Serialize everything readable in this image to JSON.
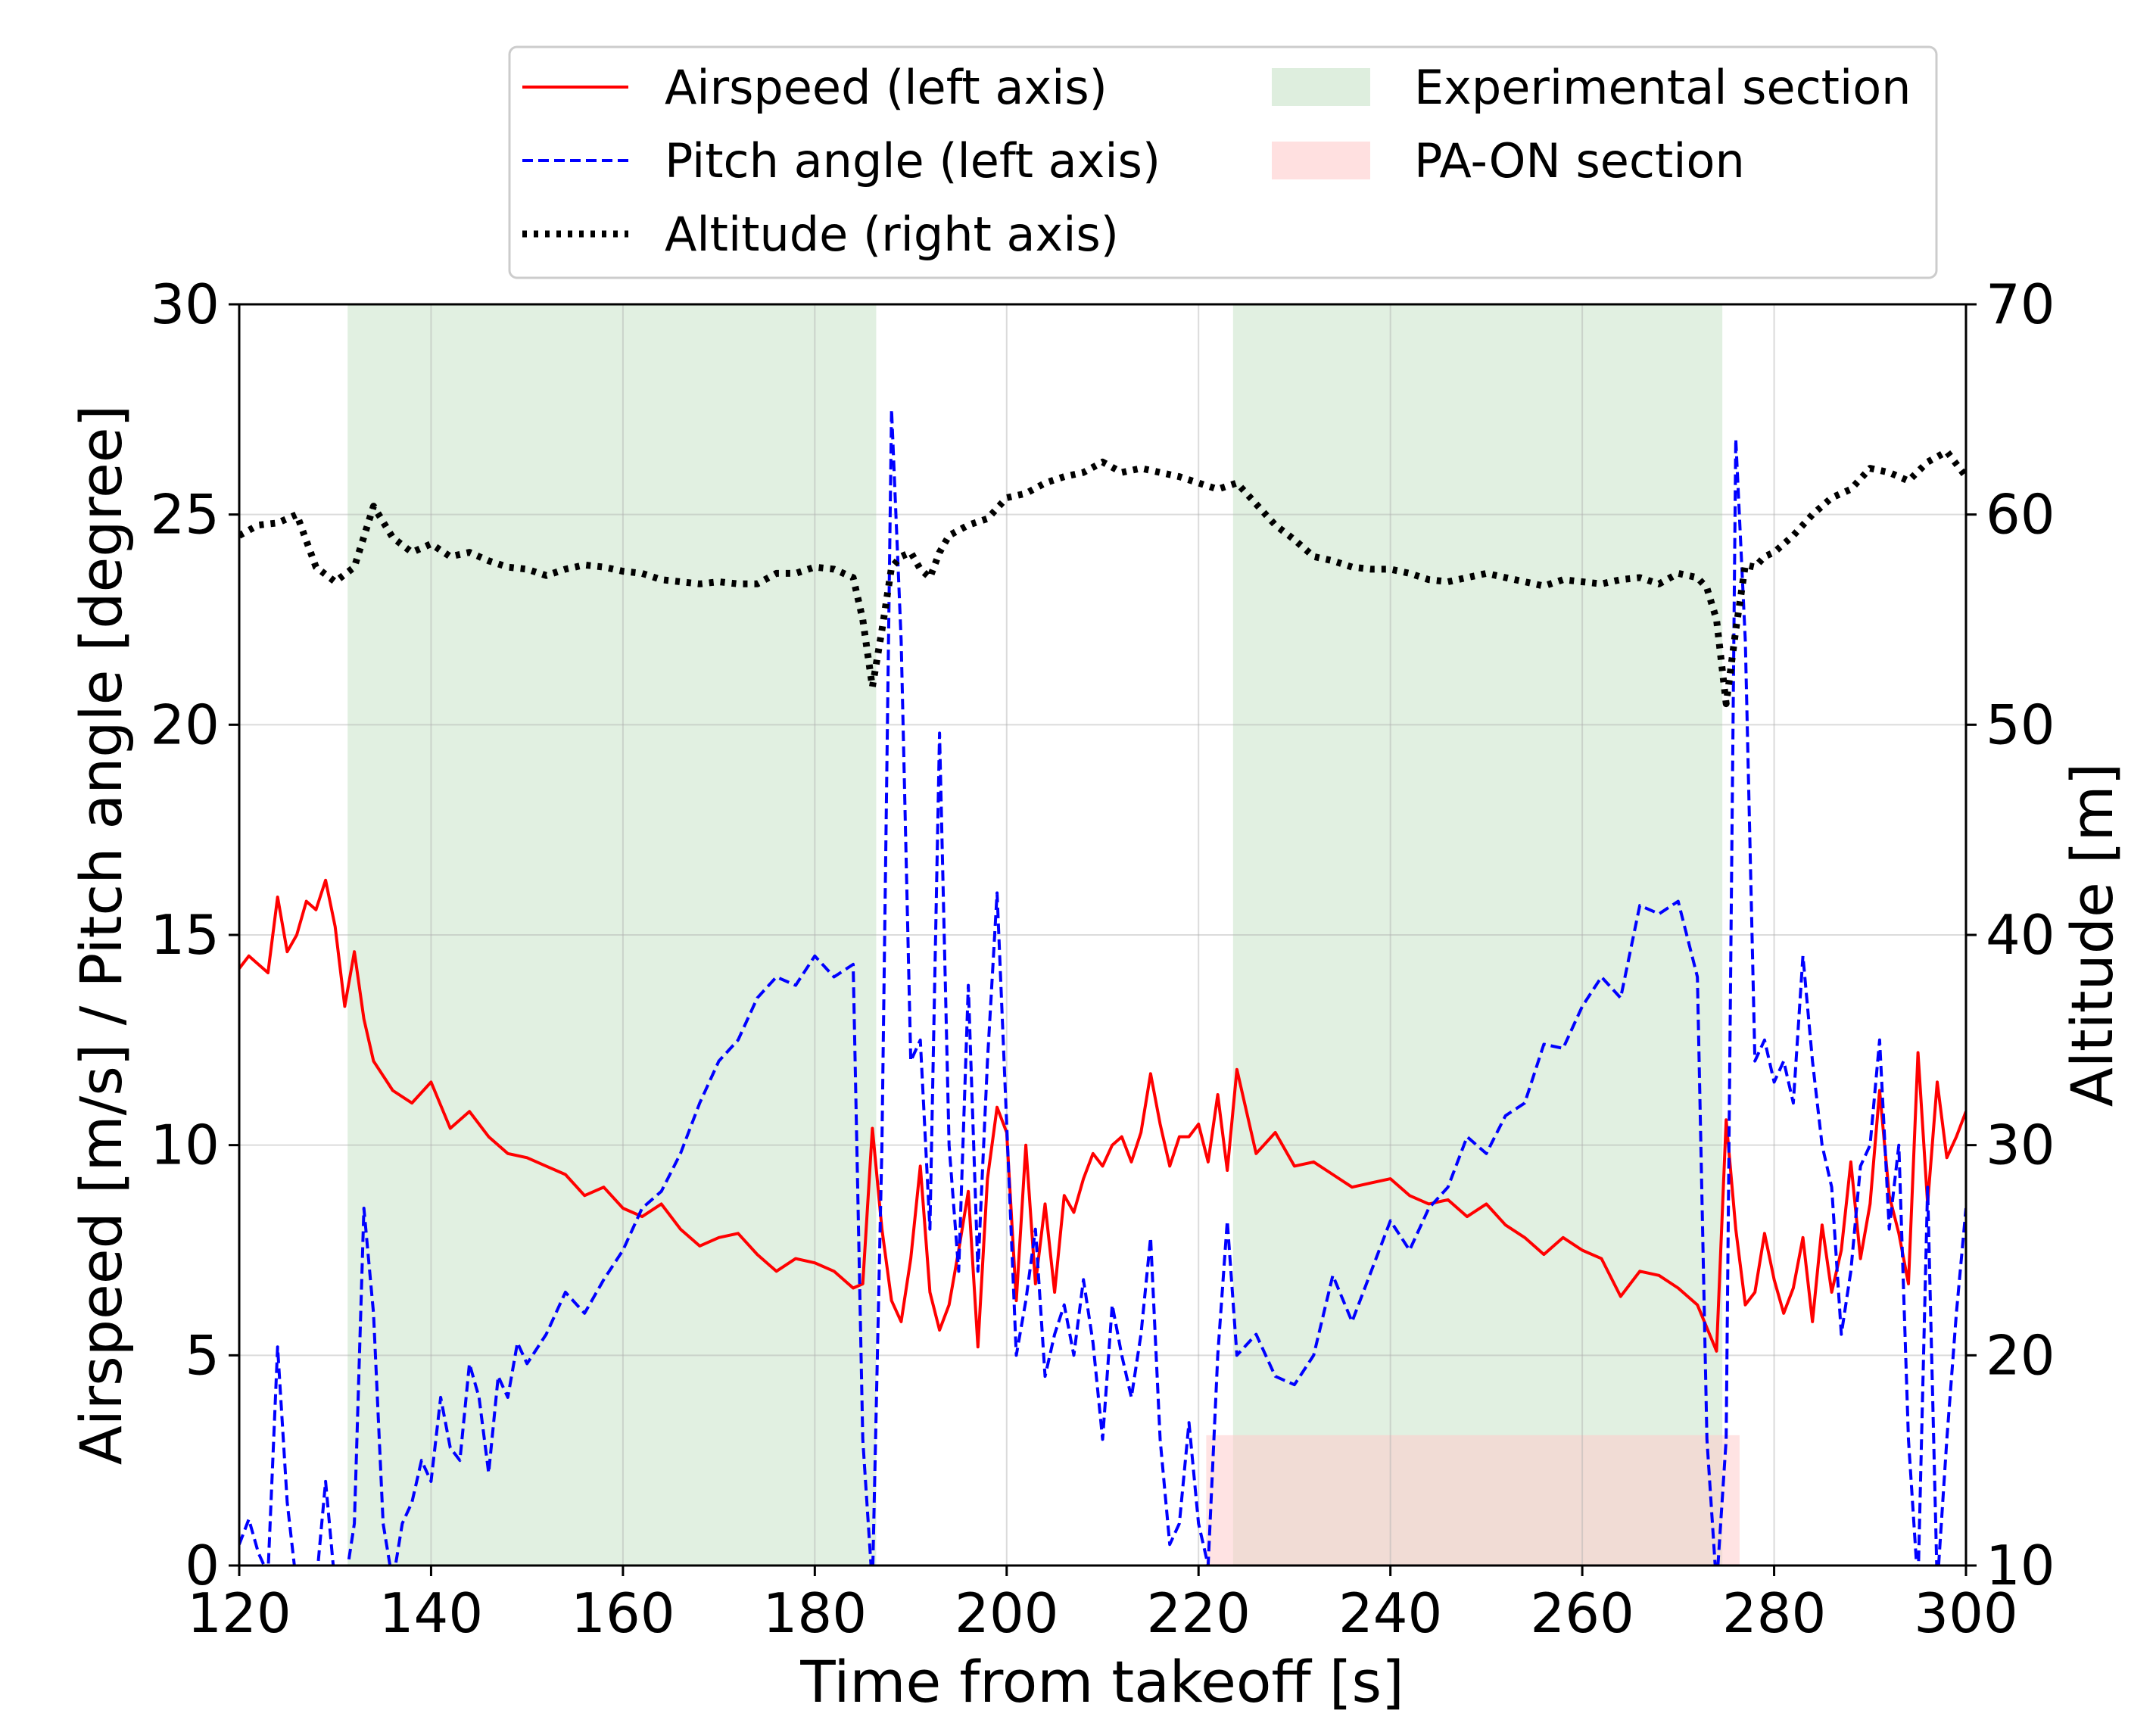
{
  "chart_data": {
    "type": "line",
    "xlabel": "Time from takeoff [s]",
    "ylabel_left": "Airspeed [m/s] / Pitch angle [degree]",
    "ylabel_right": "Altitude [m]",
    "xlim": [
      120,
      300
    ],
    "ylim_left": [
      0,
      30
    ],
    "ylim_right": [
      10,
      70
    ],
    "grid": true,
    "legend_position": "top-center (outside, above plot)",
    "x_ticks": [
      "120",
      "140",
      "160",
      "180",
      "200",
      "220",
      "240",
      "260",
      "280",
      "300"
    ],
    "y_left_ticks": [
      "0",
      "5",
      "10",
      "15",
      "20",
      "25",
      "30"
    ],
    "y_right_ticks": [
      "10",
      "20",
      "30",
      "40",
      "50",
      "60",
      "70"
    ],
    "shaded_regions": [
      {
        "name": "Experimental section",
        "x": [
          131.3,
          186.4
        ],
        "y_top_left": 30,
        "color": "#c8e3c8"
      },
      {
        "name": "Experimental section",
        "x": [
          223.6,
          274.6
        ],
        "y_top_left": 30,
        "color": "#c8e3c8"
      },
      {
        "name": "PA-ON section",
        "x": [
          220.8,
          276.4
        ],
        "y_top_left": 3.1,
        "color": "#ffcccc"
      }
    ],
    "series": [
      {
        "name": "Airspeed (left axis)",
        "axis": "left",
        "color": "#ff0000",
        "style": "solid",
        "x": [
          120,
          121,
          122,
          123,
          124,
          125,
          126,
          127,
          128,
          129,
          130,
          131,
          132,
          133,
          134,
          136,
          138,
          140,
          142,
          144,
          146,
          148,
          150,
          152,
          154,
          156,
          158,
          160,
          162,
          164,
          166,
          168,
          170,
          172,
          174,
          176,
          178,
          180,
          182,
          184,
          185,
          186,
          187,
          188,
          189,
          190,
          191,
          192,
          193,
          194,
          195,
          196,
          197,
          198,
          199,
          200,
          201,
          202,
          203,
          204,
          205,
          206,
          207,
          208,
          209,
          210,
          211,
          212,
          213,
          214,
          215,
          216,
          217,
          218,
          219,
          220,
          221,
          222,
          223,
          224,
          226,
          228,
          230,
          232,
          234,
          236,
          238,
          240,
          242,
          244,
          246,
          248,
          250,
          252,
          254,
          256,
          258,
          260,
          262,
          264,
          266,
          268,
          270,
          272,
          274,
          275,
          276,
          277,
          278,
          279,
          280,
          281,
          282,
          283,
          284,
          285,
          286,
          287,
          288,
          289,
          290,
          291,
          292,
          293,
          294,
          295,
          296,
          297,
          298,
          299,
          300
        ],
        "y": [
          14.2,
          14.5,
          14.3,
          14.1,
          15.9,
          14.6,
          15.0,
          15.8,
          15.6,
          16.3,
          15.2,
          13.3,
          14.6,
          13.0,
          12.0,
          11.3,
          11.0,
          11.5,
          10.4,
          10.8,
          10.2,
          9.8,
          9.7,
          9.5,
          9.3,
          8.8,
          9.0,
          8.5,
          8.3,
          8.6,
          8.0,
          7.6,
          7.8,
          7.9,
          7.4,
          7.0,
          7.3,
          7.2,
          7.0,
          6.6,
          6.7,
          10.4,
          8.0,
          6.3,
          5.8,
          7.3,
          9.5,
          6.5,
          5.6,
          6.2,
          7.5,
          8.9,
          5.2,
          9.2,
          10.9,
          10.3,
          6.3,
          10.0,
          6.7,
          8.6,
          6.5,
          8.8,
          8.4,
          9.2,
          9.8,
          9.5,
          10.0,
          10.2,
          9.6,
          10.3,
          11.7,
          10.5,
          9.5,
          10.2,
          10.2,
          10.5,
          9.6,
          11.2,
          9.4,
          11.8,
          9.8,
          10.3,
          9.5,
          9.6,
          9.3,
          9.0,
          9.1,
          9.2,
          8.8,
          8.6,
          8.7,
          8.3,
          8.6,
          8.1,
          7.8,
          7.4,
          7.8,
          7.5,
          7.3,
          6.4,
          7.0,
          6.9,
          6.6,
          6.2,
          5.1,
          10.6,
          8.0,
          6.2,
          6.5,
          7.9,
          6.8,
          6.0,
          6.6,
          7.8,
          5.8,
          8.1,
          6.5,
          7.5,
          9.6,
          7.3,
          8.6,
          11.3,
          8.8,
          7.9,
          6.7,
          12.2,
          8.6,
          11.5,
          9.7,
          10.2,
          10.8
        ]
      },
      {
        "name": "Pitch angle (left axis)",
        "axis": "left",
        "color": "#0000ff",
        "style": "dashed",
        "x": [
          120,
          121,
          122,
          123,
          124,
          125,
          126,
          127,
          128,
          129,
          130,
          131,
          132,
          133,
          134,
          135,
          136,
          137,
          138,
          139,
          140,
          141,
          142,
          143,
          144,
          145,
          146,
          147,
          148,
          149,
          150,
          152,
          154,
          156,
          158,
          160,
          162,
          164,
          166,
          168,
          170,
          172,
          174,
          176,
          178,
          180,
          182,
          184,
          185,
          186,
          187,
          188,
          189,
          190,
          191,
          192,
          193,
          194,
          195,
          196,
          197,
          198,
          199,
          200,
          201,
          202,
          203,
          204,
          205,
          206,
          207,
          208,
          209,
          210,
          211,
          212,
          213,
          214,
          215,
          216,
          217,
          218,
          219,
          220,
          221,
          222,
          223,
          224,
          226,
          228,
          230,
          232,
          234,
          236,
          238,
          240,
          242,
          244,
          246,
          248,
          250,
          252,
          254,
          256,
          258,
          260,
          262,
          264,
          266,
          268,
          270,
          272,
          273,
          274,
          275,
          276,
          277,
          278,
          279,
          280,
          281,
          282,
          283,
          284,
          285,
          286,
          287,
          288,
          289,
          290,
          291,
          292,
          293,
          294,
          295,
          296,
          297,
          298,
          299,
          300
        ],
        "y": [
          0.5,
          1.1,
          0.3,
          -0.2,
          5.2,
          1.5,
          -0.5,
          -0.3,
          -0.5,
          2.0,
          -0.5,
          -0.5,
          1.0,
          8.5,
          6.0,
          1.0,
          -0.4,
          1.0,
          1.5,
          2.5,
          2.0,
          4.0,
          2.8,
          2.5,
          4.8,
          4.0,
          2.2,
          4.5,
          4.0,
          5.3,
          4.8,
          5.5,
          6.5,
          6.0,
          6.8,
          7.5,
          8.5,
          8.9,
          9.8,
          11.0,
          12.0,
          12.5,
          13.5,
          14.0,
          13.8,
          14.5,
          14.0,
          14.3,
          3.0,
          -0.5,
          10.0,
          27.5,
          22.0,
          12.0,
          12.5,
          8.0,
          19.8,
          10.0,
          7.0,
          13.8,
          7.0,
          12.0,
          16.0,
          10.5,
          5.0,
          6.3,
          8.0,
          4.5,
          5.5,
          6.2,
          5.0,
          6.8,
          5.3,
          3.0,
          6.2,
          5.0,
          4.0,
          5.5,
          7.8,
          3.0,
          0.5,
          1.0,
          3.4,
          1.0,
          0.0,
          5.0,
          8.2,
          5.0,
          5.5,
          4.5,
          4.3,
          5.0,
          6.9,
          5.8,
          7.0,
          8.2,
          7.5,
          8.5,
          9.0,
          10.2,
          9.8,
          10.7,
          11.0,
          12.4,
          12.3,
          13.3,
          14.0,
          13.5,
          15.7,
          15.5,
          15.8,
          14.0,
          3.0,
          -0.5,
          3.0,
          26.8,
          22.0,
          12.0,
          12.5,
          11.5,
          12.0,
          11.0,
          14.5,
          12.0,
          10.0,
          9.0,
          5.5,
          7.0,
          9.5,
          10.0,
          12.5,
          8.0,
          10.0,
          3.0,
          -0.5,
          9.0,
          -0.5,
          3.0,
          6.0,
          8.5
        ]
      },
      {
        "name": "Altitude (right axis)",
        "axis": "right",
        "color": "#000000",
        "style": "dotted",
        "x": [
          120,
          122,
          124,
          126,
          128,
          130,
          132,
          134,
          136,
          138,
          140,
          142,
          144,
          146,
          148,
          150,
          152,
          154,
          156,
          158,
          160,
          162,
          164,
          166,
          168,
          170,
          172,
          174,
          176,
          178,
          180,
          182,
          184,
          185,
          186,
          187,
          188,
          189,
          190,
          191,
          192,
          193,
          194,
          196,
          198,
          200,
          202,
          204,
          206,
          208,
          210,
          212,
          214,
          216,
          218,
          220,
          222,
          224,
          226,
          228,
          230,
          232,
          234,
          236,
          238,
          240,
          242,
          244,
          246,
          248,
          250,
          252,
          254,
          256,
          258,
          260,
          262,
          264,
          266,
          268,
          270,
          272,
          273,
          274,
          275,
          276,
          277,
          278,
          279,
          280,
          282,
          284,
          286,
          288,
          290,
          292,
          294,
          296,
          298,
          300
        ],
        "y": [
          59.0,
          59.5,
          59.6,
          60.0,
          57.5,
          56.8,
          57.5,
          60.4,
          58.9,
          58.2,
          58.6,
          58.0,
          58.2,
          57.8,
          57.5,
          57.4,
          57.1,
          57.4,
          57.6,
          57.5,
          57.3,
          57.2,
          56.9,
          56.8,
          56.7,
          56.8,
          56.7,
          56.7,
          57.2,
          57.2,
          57.5,
          57.4,
          57.0,
          55.0,
          51.8,
          54.5,
          57.5,
          58.0,
          58.2,
          57.4,
          57.0,
          58.2,
          59.0,
          59.5,
          59.8,
          60.8,
          61.0,
          61.5,
          61.8,
          62.0,
          62.5,
          62.0,
          62.2,
          62.0,
          61.8,
          61.5,
          61.2,
          61.5,
          60.5,
          59.5,
          58.8,
          58.0,
          57.8,
          57.5,
          57.4,
          57.4,
          57.2,
          56.9,
          56.8,
          57.0,
          57.2,
          57.0,
          56.8,
          56.6,
          56.9,
          56.8,
          56.7,
          56.9,
          57.0,
          56.7,
          57.2,
          57.0,
          56.5,
          55.0,
          51.0,
          54.5,
          57.6,
          57.5,
          58.0,
          58.2,
          59.0,
          60.0,
          60.8,
          61.2,
          62.2,
          62.0,
          61.6,
          62.5,
          63.0,
          61.8
        ]
      }
    ],
    "legend": [
      {
        "label": "Airspeed (left axis)",
        "kind": "line",
        "color": "#ff0000",
        "style": "solid"
      },
      {
        "label": "Pitch angle (left axis)",
        "kind": "line",
        "color": "#0000ff",
        "style": "dashed"
      },
      {
        "label": "Altitude (right axis)",
        "kind": "line",
        "color": "#000000",
        "style": "dotted"
      },
      {
        "label": "Experimental section",
        "kind": "patch",
        "color": "#c8e3c8"
      },
      {
        "label": "PA-ON section",
        "kind": "patch",
        "color": "#ffcccc"
      }
    ]
  }
}
